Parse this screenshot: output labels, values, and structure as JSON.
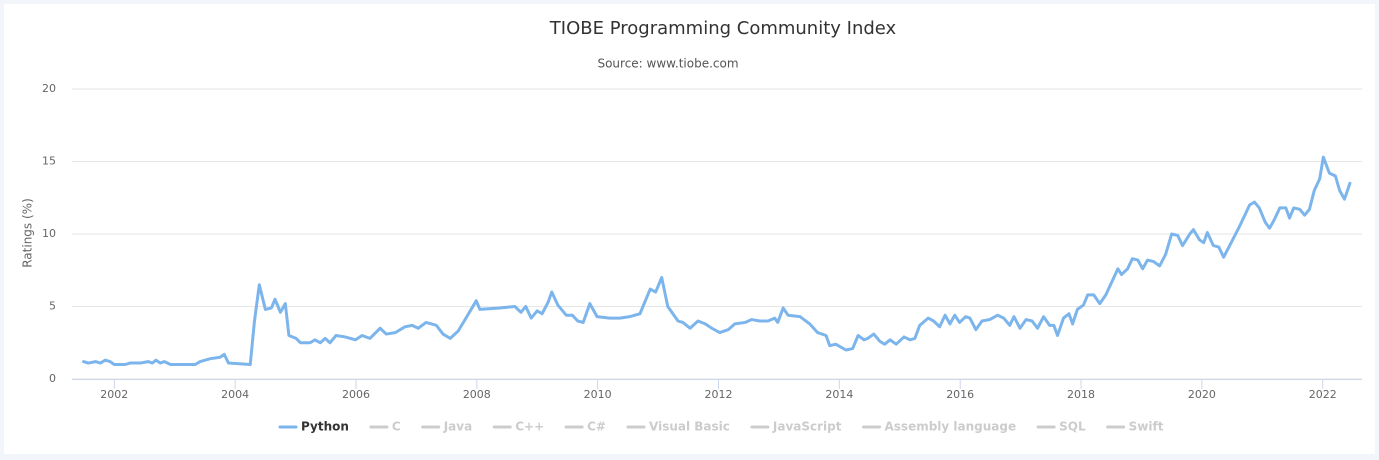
{
  "chart_data": {
    "type": "line",
    "title": "TIOBE Programming Community Index",
    "subtitle": "Source: www.tiobe.com",
    "y_axis_label": "Ratings (%)",
    "xlim": [
      2001.3,
      2022.65
    ],
    "xticks": [
      2002,
      2004,
      2006,
      2008,
      2010,
      2012,
      2014,
      2016,
      2018,
      2020,
      2022
    ],
    "ylim": [
      0,
      20
    ],
    "yticks": [
      0,
      5,
      10,
      15,
      20
    ],
    "grid": true,
    "legend": "bottom",
    "x": [
      2001.49,
      2001.57,
      2001.69,
      2001.77,
      2001.85,
      2001.93,
      2002.0,
      2002.18,
      2002.26,
      2002.43,
      2002.56,
      2002.63,
      2002.69,
      2002.76,
      2002.83,
      2002.93,
      2003.09,
      2003.19,
      2003.34,
      2003.42,
      2003.59,
      2003.75,
      2003.82,
      2003.89,
      2004.25,
      2004.32,
      2004.4,
      2004.5,
      2004.6,
      2004.66,
      2004.75,
      2004.83,
      2004.89,
      2005.01,
      2005.08,
      2005.24,
      2005.32,
      2005.41,
      2005.49,
      2005.57,
      2005.67,
      2005.82,
      2005.99,
      2006.1,
      2006.23,
      2006.4,
      2006.5,
      2006.65,
      2006.81,
      2006.93,
      2007.03,
      2007.16,
      2007.33,
      2007.44,
      2007.56,
      2007.69,
      2007.82,
      2007.92,
      2007.99,
      2008.05,
      2008.38,
      2008.63,
      2008.73,
      2008.81,
      2008.9,
      2009.0,
      2009.08,
      2009.18,
      2009.24,
      2009.34,
      2009.48,
      2009.58,
      2009.67,
      2009.76,
      2009.87,
      2009.99,
      2010.2,
      2010.37,
      2010.53,
      2010.7,
      2010.87,
      2010.96,
      2011.06,
      2011.16,
      2011.33,
      2011.41,
      2011.53,
      2011.66,
      2011.78,
      2011.89,
      2012.02,
      2012.16,
      2012.27,
      2012.44,
      2012.55,
      2012.68,
      2012.82,
      2012.93,
      2012.98,
      2013.07,
      2013.15,
      2013.35,
      2013.51,
      2013.64,
      2013.78,
      2013.84,
      2013.94,
      2014.11,
      2014.22,
      2014.31,
      2014.41,
      2014.47,
      2014.57,
      2014.67,
      2014.75,
      2014.84,
      2014.94,
      2015.07,
      2015.17,
      2015.25,
      2015.33,
      2015.47,
      2015.56,
      2015.66,
      2015.75,
      2015.83,
      2015.91,
      2015.99,
      2016.09,
      2016.16,
      2016.26,
      2016.36,
      2016.49,
      2016.62,
      2016.72,
      2016.82,
      2016.89,
      2016.99,
      2017.09,
      2017.19,
      2017.28,
      2017.38,
      2017.48,
      2017.55,
      2017.61,
      2017.71,
      2017.8,
      2017.86,
      2017.94,
      2018.04,
      2018.11,
      2018.21,
      2018.31,
      2018.41,
      2018.51,
      2018.61,
      2018.67,
      2018.77,
      2018.85,
      2018.94,
      2019.02,
      2019.1,
      2019.2,
      2019.3,
      2019.4,
      2019.5,
      2019.6,
      2019.68,
      2019.8,
      2019.86,
      2019.96,
      2020.03,
      2020.09,
      2020.19,
      2020.28,
      2020.36,
      2020.46,
      2020.62,
      2020.79,
      2020.87,
      2020.95,
      2021.05,
      2021.12,
      2021.2,
      2021.29,
      2021.39,
      2021.45,
      2021.52,
      2021.62,
      2021.7,
      2021.78,
      2021.86,
      2021.95,
      2022.01,
      2022.11,
      2022.21,
      2022.28,
      2022.36,
      2022.45
    ],
    "series": [
      {
        "name": "Python",
        "color": "#7cb5ec",
        "visible": true,
        "values": [
          1.2,
          1.1,
          1.2,
          1.1,
          1.3,
          1.2,
          1.0,
          1.0,
          1.1,
          1.1,
          1.2,
          1.1,
          1.3,
          1.1,
          1.2,
          1.0,
          1.0,
          1.0,
          1.0,
          1.2,
          1.4,
          1.5,
          1.7,
          1.1,
          1.0,
          4.0,
          6.5,
          4.8,
          4.9,
          5.5,
          4.6,
          5.2,
          3.0,
          2.8,
          2.5,
          2.5,
          2.7,
          2.5,
          2.8,
          2.5,
          3.0,
          2.9,
          2.7,
          3.0,
          2.8,
          3.5,
          3.1,
          3.2,
          3.6,
          3.7,
          3.5,
          3.9,
          3.7,
          3.1,
          2.8,
          3.3,
          4.2,
          4.9,
          5.4,
          4.8,
          4.9,
          5.0,
          4.6,
          5.0,
          4.2,
          4.7,
          4.5,
          5.3,
          6.0,
          5.1,
          4.4,
          4.4,
          4.0,
          3.9,
          5.2,
          4.3,
          4.2,
          4.2,
          4.3,
          4.5,
          6.2,
          6.0,
          7.0,
          5.0,
          4.0,
          3.9,
          3.5,
          4.0,
          3.8,
          3.5,
          3.2,
          3.4,
          3.8,
          3.9,
          4.1,
          4.0,
          4.0,
          4.2,
          3.9,
          4.9,
          4.4,
          4.3,
          3.8,
          3.2,
          3.0,
          2.3,
          2.4,
          2.0,
          2.1,
          3.0,
          2.7,
          2.8,
          3.1,
          2.6,
          2.4,
          2.7,
          2.4,
          2.9,
          2.7,
          2.8,
          3.7,
          4.2,
          4.0,
          3.6,
          4.4,
          3.8,
          4.4,
          3.9,
          4.3,
          4.2,
          3.4,
          4.0,
          4.1,
          4.4,
          4.2,
          3.7,
          4.3,
          3.5,
          4.1,
          4.0,
          3.5,
          4.3,
          3.7,
          3.7,
          3.0,
          4.2,
          4.5,
          3.8,
          4.8,
          5.1,
          5.8,
          5.8,
          5.2,
          5.8,
          6.7,
          7.6,
          7.2,
          7.6,
          8.3,
          8.2,
          7.6,
          8.2,
          8.1,
          7.8,
          8.6,
          10.0,
          9.9,
          9.2,
          10.0,
          10.3,
          9.6,
          9.4,
          10.1,
          9.2,
          9.1,
          8.4,
          9.2,
          10.5,
          12.0,
          12.2,
          11.8,
          10.8,
          10.4,
          11.0,
          11.8,
          11.8,
          11.1,
          11.8,
          11.7,
          11.3,
          11.7,
          13.0,
          13.8,
          15.3,
          14.2,
          14.0,
          13.0,
          12.4,
          13.5
        ]
      },
      {
        "name": "C",
        "color": "#cccccc",
        "visible": false
      },
      {
        "name": "Java",
        "color": "#cccccc",
        "visible": false
      },
      {
        "name": "C++",
        "color": "#cccccc",
        "visible": false
      },
      {
        "name": "C#",
        "color": "#cccccc",
        "visible": false
      },
      {
        "name": "Visual Basic",
        "color": "#cccccc",
        "visible": false
      },
      {
        "name": "JavaScript",
        "color": "#cccccc",
        "visible": false
      },
      {
        "name": "Assembly language",
        "color": "#cccccc",
        "visible": false
      },
      {
        "name": "SQL",
        "color": "#cccccc",
        "visible": false
      },
      {
        "name": "Swift",
        "color": "#cccccc",
        "visible": false
      }
    ]
  }
}
